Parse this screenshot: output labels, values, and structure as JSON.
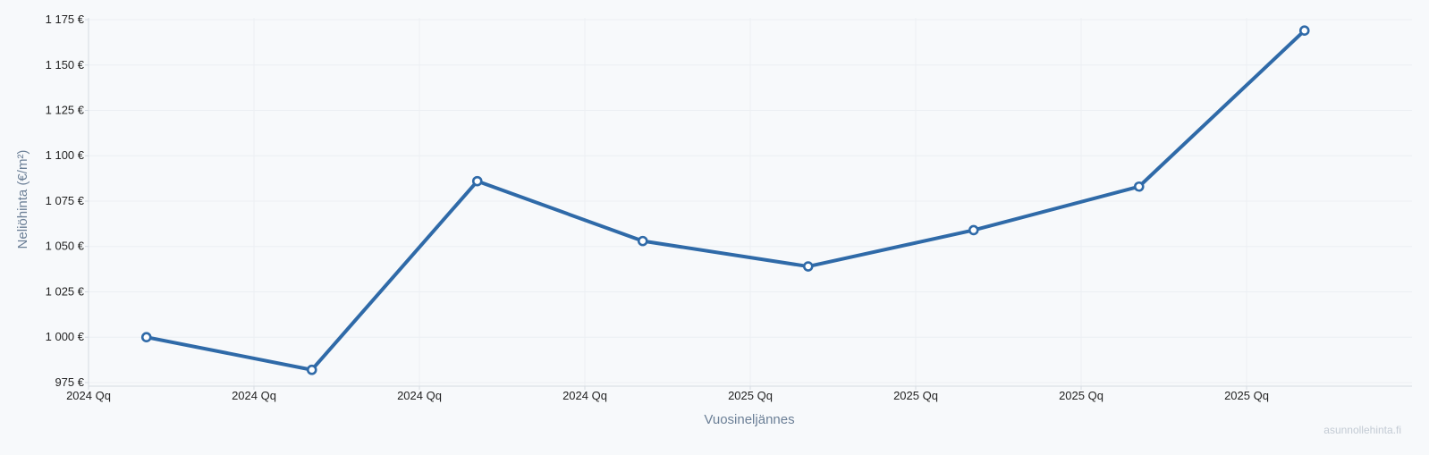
{
  "chart_data": {
    "type": "line",
    "xlabel": "Vuosineljännes",
    "ylabel": "Neliöhinta (€/m²)",
    "x_tick_labels": [
      "2024 Qq",
      "2024 Qq",
      "2024 Qq",
      "2024 Qq",
      "2025 Qq",
      "2025 Qq",
      "2025 Qq",
      "2025 Qq"
    ],
    "y_ticks": [
      975,
      1000,
      1025,
      1050,
      1075,
      1100,
      1125,
      1150,
      1175
    ],
    "y_tick_labels": [
      "975 €",
      "1 000 €",
      "1 025 €",
      "1 050 €",
      "1 075 €",
      "1 100 €",
      "1 125 €",
      "1 150 €",
      "1 175 €"
    ],
    "ylim": [
      973,
      1176
    ],
    "grid": true,
    "series": [
      {
        "values": [
          1000,
          982,
          1086,
          1053,
          1039,
          1059,
          1083,
          1169
        ],
        "color": "#2f6aa8"
      }
    ]
  },
  "watermark": "asunnollehinta.fi"
}
